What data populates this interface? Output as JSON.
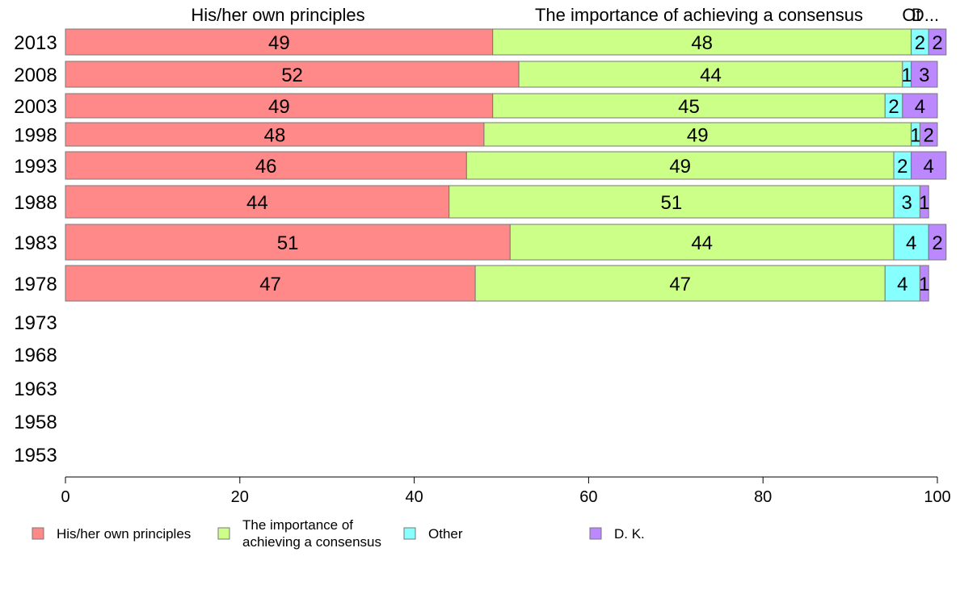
{
  "chart_data": {
    "type": "bar",
    "orientation": "horizontal",
    "stacked": true,
    "categories": [
      "2013",
      "2008",
      "2003",
      "1998",
      "1993",
      "1988",
      "1983",
      "1978",
      "1973",
      "1968",
      "1963",
      "1958",
      "1953"
    ],
    "series": [
      {
        "name": "His/her own principles",
        "color": "#ff8888",
        "values": [
          49,
          52,
          49,
          48,
          46,
          44,
          51,
          47,
          null,
          null,
          null,
          null,
          null
        ]
      },
      {
        "name": "The importance of achieving a consensus",
        "color": "#ccff88",
        "values": [
          48,
          44,
          45,
          49,
          49,
          51,
          44,
          47,
          null,
          null,
          null,
          null,
          null
        ]
      },
      {
        "name": "Other",
        "color": "#88ffff",
        "values": [
          2,
          1,
          2,
          1,
          2,
          3,
          4,
          4,
          null,
          null,
          null,
          null,
          null
        ]
      },
      {
        "name": "D. K.",
        "color": "#bb88ff",
        "values": [
          2,
          3,
          4,
          2,
          4,
          1,
          2,
          1,
          null,
          null,
          null,
          null,
          null
        ]
      }
    ],
    "column_headers": [
      "His/her own principles",
      "The importance of achieving a consensus",
      "Ot",
      "D..."
    ],
    "legend_labels": [
      [
        "His/her own principles"
      ],
      [
        "The importance of",
        "achieving a consensus"
      ],
      [
        "Other"
      ],
      [
        "D. K."
      ]
    ],
    "xlim": [
      0,
      100
    ],
    "xticks": [
      0,
      20,
      40,
      60,
      80,
      100
    ],
    "grid": false,
    "legend_position": "bottom"
  }
}
